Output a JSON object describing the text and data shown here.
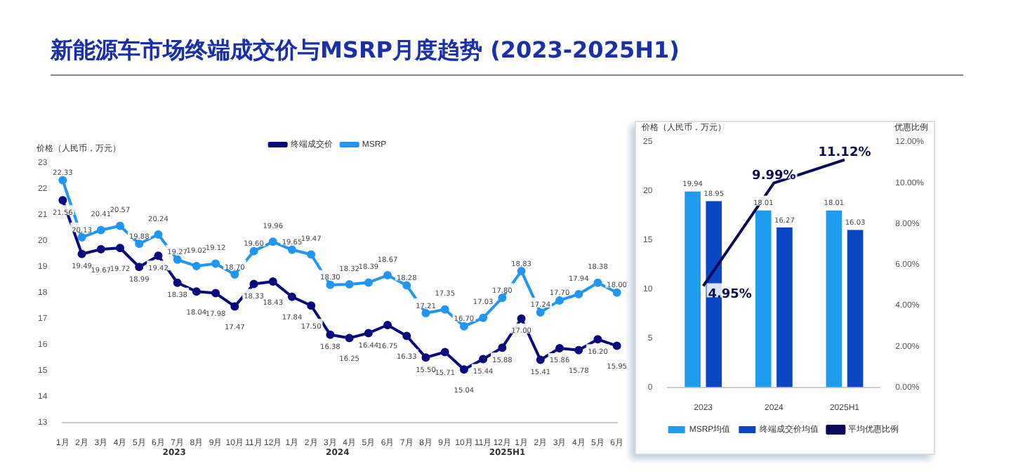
{
  "chart_data": [
    {
      "type": "line",
      "title": "新能源车市场终端成交价与MSRP月度趋势 (2023-2025H1)",
      "ylabel": "价格（人民币，万元）",
      "categories": [
        "1月",
        "2月",
        "3月",
        "4月",
        "5月",
        "6月",
        "7月",
        "8月",
        "9月",
        "10月",
        "11月",
        "12月",
        "1月",
        "2月",
        "3月",
        "4月",
        "5月",
        "6月",
        "7月",
        "8月",
        "9月",
        "10月",
        "11月",
        "12月",
        "1月",
        "2月",
        "3月",
        "4月",
        "5月",
        "6月"
      ],
      "series": [
        {
          "name": "终端成交价",
          "color": "#0a0a80",
          "values": [
            21.56,
            19.49,
            19.67,
            19.72,
            18.99,
            19.42,
            18.38,
            18.04,
            17.98,
            17.47,
            18.33,
            18.43,
            17.84,
            17.5,
            16.38,
            16.25,
            16.44,
            16.75,
            16.33,
            15.5,
            15.71,
            15.04,
            15.44,
            15.88,
            17.0,
            15.41,
            15.86,
            15.78,
            16.2,
            15.95
          ],
          "value_labels": [
            "21.56",
            "19.49",
            "19.67",
            "19.72",
            "18.99",
            "19.42",
            "18.38",
            "18.04",
            "17.98",
            "17.47",
            "18.33",
            "18.43",
            "17.84",
            "17.50",
            "16.38",
            "16.25",
            "16.44",
            "16.75",
            "16.33",
            "15.50",
            "15.71",
            "15.04",
            "15.44",
            "15.88",
            "17.00",
            "15.41",
            "15.86",
            "15.78",
            "16.20",
            "15.95"
          ]
        },
        {
          "name": "MSRP",
          "color": "#2196f3",
          "values": [
            22.33,
            20.13,
            20.41,
            20.57,
            19.88,
            20.24,
            19.27,
            19.02,
            19.12,
            18.7,
            19.6,
            19.96,
            19.65,
            19.47,
            18.3,
            18.32,
            18.39,
            18.67,
            18.28,
            17.21,
            17.35,
            16.7,
            17.03,
            17.8,
            18.83,
            17.24,
            17.7,
            17.94,
            18.38,
            18.0
          ],
          "value_labels": [
            "22.33",
            "20.13",
            "20.41",
            "20.57",
            "19.88",
            "20.24",
            "19.27",
            "19.02",
            "19.12",
            "18.70",
            "19.60",
            "19.96",
            "19.65",
            "19.47",
            "18.30",
            "18.32",
            "18.39",
            "18.67",
            "18.28",
            "17.21",
            "17.35",
            "16.70",
            "17.03",
            "17.80",
            "18.83",
            "17.24",
            "17.70",
            "17.94",
            "18.38",
            "18.00"
          ]
        }
      ],
      "ylim": [
        13,
        23
      ],
      "yticks": [
        13,
        14,
        15,
        16,
        17,
        18,
        19,
        20,
        21,
        22,
        23
      ],
      "marker": "circle",
      "legend": "top",
      "annotations": [
        "2023",
        "2024",
        "2025H1"
      ]
    },
    {
      "type": "bar",
      "ylabel": "价格（人民币，万元）",
      "y2label": "优惠比例",
      "categories": [
        "2023",
        "2024",
        "2025H1"
      ],
      "series": [
        {
          "name": "MSRP均值",
          "color": "#1e9cf0",
          "values": [
            19.94,
            18.01,
            18.01
          ],
          "value_labels": [
            "19.94",
            "18.01",
            "18.01"
          ]
        },
        {
          "name": "终端成交价均值",
          "color": "#0b47c2",
          "values": [
            18.95,
            16.27,
            16.03
          ],
          "value_labels": [
            "18.95",
            "16.27",
            "16.03"
          ]
        },
        {
          "name": "平均优惠比例",
          "type": "line",
          "axis": "y2",
          "color": "#0a0a5a",
          "values": [
            4.95,
            9.99,
            11.12
          ],
          "value_labels": [
            "4.95%",
            "9.99%",
            "11.12%"
          ]
        }
      ],
      "ylim": [
        0,
        25
      ],
      "yticks": [
        0,
        5,
        10,
        15,
        20,
        25
      ],
      "y2lim": [
        0,
        12
      ],
      "y2ticks": [
        {
          "value": 0,
          "label": "0.00%"
        },
        {
          "value": 2,
          "label": "2.00%"
        },
        {
          "value": 4,
          "label": "4.00%"
        },
        {
          "value": 6,
          "label": "6.00%"
        },
        {
          "value": 8,
          "label": "8.00%"
        },
        {
          "value": 10,
          "label": "10.00%"
        },
        {
          "value": 12,
          "label": "12.00%"
        }
      ],
      "legend": "bottom"
    }
  ]
}
